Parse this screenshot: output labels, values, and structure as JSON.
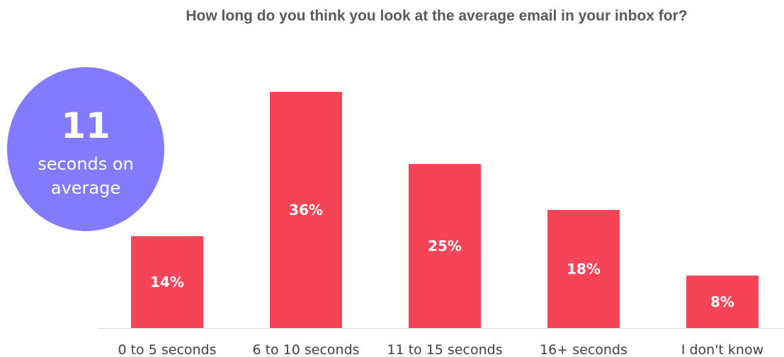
{
  "chart_data": {
    "type": "bar",
    "title": "How long do you think you look at the average email in your inbox for?",
    "categories": [
      "0 to 5 seconds",
      "6 to 10 seconds",
      "11 to 15 seconds",
      "16+ seconds",
      "I don't know"
    ],
    "values": [
      14,
      36,
      25,
      18,
      8
    ],
    "data_labels": [
      "14%",
      "36%",
      "25%",
      "18%",
      "8%"
    ],
    "ylim": [
      0,
      36
    ],
    "grid": false,
    "legend": "none",
    "bar_color": "#f44455",
    "axis_color": "#d9d9d9",
    "label_color": "#404040"
  },
  "callout": {
    "number": "11",
    "text": "seconds on average",
    "color": "#837bff"
  }
}
